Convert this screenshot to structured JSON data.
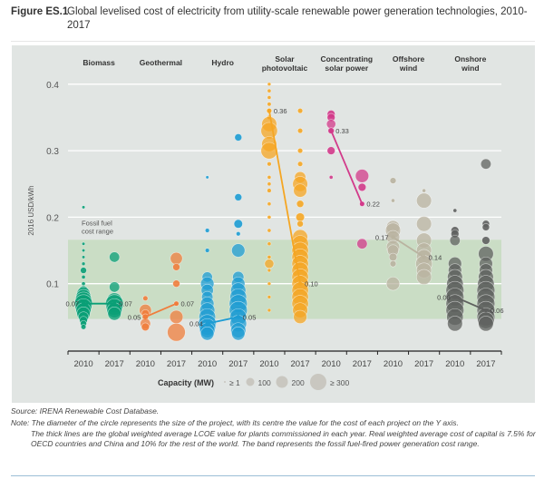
{
  "figure": {
    "label": "Figure ES.1",
    "title": "Global levelised cost of electricity from utility-scale renewable power generation technologies, 2010-2017"
  },
  "source": "Source: IRENA Renewable Cost Database.",
  "note": {
    "first": "Note: The diameter of the circle represents the size of the project, with its centre the value for the cost of each project on the Y axis.",
    "rest": "The thick lines are the global weighted average LCOE value for plants commissioned in each year. Real weighted average cost of capital is 7.5% for OECD countries and China and 10% for the rest of the world. The band represents the fossil fuel-fired power generation cost range."
  },
  "chart_data": {
    "type": "scatter",
    "title": "Global levelised cost of electricity from utility-scale renewable power generation technologies, 2010-2017",
    "ylabel": "2016 USD/kWh",
    "xlabel": "",
    "ylim": [
      0,
      0.42
    ],
    "yticks": [
      0.1,
      0.2,
      0.3,
      0.4
    ],
    "ytick_labels": [
      "0.1",
      "0.2",
      "0.3",
      "0.4"
    ],
    "grid": true,
    "band": {
      "label": "Fossil fuel cost range",
      "low": 0.047,
      "high": 0.166,
      "color": "#c6dcbf"
    },
    "x_years": [
      "2010",
      "2017"
    ],
    "legend": {
      "title": "Capacity (MW)",
      "placement": "bottom",
      "entries": [
        {
          "label": "≥ 1",
          "mw": 1
        },
        {
          "label": "100",
          "mw": 100
        },
        {
          "label": "200",
          "mw": 200
        },
        {
          "label": "≥ 300",
          "mw": 300
        }
      ]
    },
    "series": [
      {
        "name": "Biomass",
        "header": [
          "Biomass"
        ],
        "color": "#0a9f76",
        "avg_2010": 0.07,
        "avg_2017": 0.07,
        "label_2010": "0.07",
        "label_2017": "0.07",
        "points_2010": [
          [
            0.215,
            1
          ],
          [
            0.16,
            1
          ],
          [
            0.15,
            1
          ],
          [
            0.14,
            1
          ],
          [
            0.13,
            2
          ],
          [
            0.12,
            20
          ],
          [
            0.11,
            3
          ],
          [
            0.1,
            3
          ],
          [
            0.09,
            60
          ],
          [
            0.085,
            150
          ],
          [
            0.08,
            200
          ],
          [
            0.075,
            250
          ],
          [
            0.07,
            300
          ],
          [
            0.065,
            250
          ],
          [
            0.06,
            200
          ],
          [
            0.055,
            150
          ],
          [
            0.05,
            80
          ],
          [
            0.045,
            40
          ],
          [
            0.04,
            20
          ],
          [
            0.035,
            10
          ]
        ],
        "points_2017": [
          [
            0.14,
            80
          ],
          [
            0.095,
            80
          ],
          [
            0.075,
            200
          ],
          [
            0.07,
            300
          ],
          [
            0.065,
            250
          ],
          [
            0.06,
            200
          ],
          [
            0.055,
            150
          ]
        ]
      },
      {
        "name": "Geothermal",
        "header": [
          "Geothermal"
        ],
        "color": "#ef7d3c",
        "avg_2010": 0.05,
        "avg_2017": 0.07,
        "label_2010": "0.05",
        "label_2017": "0.07",
        "points_2010": [
          [
            0.078,
            10
          ],
          [
            0.06,
            120
          ],
          [
            0.055,
            40
          ],
          [
            0.05,
            20
          ],
          [
            0.04,
            80
          ],
          [
            0.035,
            40
          ]
        ],
        "points_2017": [
          [
            0.138,
            120
          ],
          [
            0.125,
            30
          ],
          [
            0.1,
            30
          ],
          [
            0.07,
            10
          ],
          [
            0.05,
            150
          ],
          [
            0.027,
            300
          ]
        ]
      },
      {
        "name": "Hydro",
        "header": [
          "Hydro"
        ],
        "color": "#1d9cd3",
        "avg_2010": 0.04,
        "avg_2017": 0.05,
        "label_2010": "0.04",
        "label_2017": "0.05",
        "points_2010": [
          [
            0.26,
            1
          ],
          [
            0.18,
            5
          ],
          [
            0.15,
            5
          ],
          [
            0.11,
            80
          ],
          [
            0.1,
            150
          ],
          [
            0.09,
            120
          ],
          [
            0.08,
            100
          ],
          [
            0.07,
            150
          ],
          [
            0.06,
            200
          ],
          [
            0.05,
            250
          ],
          [
            0.04,
            300
          ],
          [
            0.035,
            250
          ],
          [
            0.03,
            200
          ],
          [
            0.025,
            150
          ]
        ],
        "points_2017": [
          [
            0.32,
            30
          ],
          [
            0.23,
            30
          ],
          [
            0.19,
            50
          ],
          [
            0.175,
            5
          ],
          [
            0.15,
            150
          ],
          [
            0.11,
            100
          ],
          [
            0.1,
            150
          ],
          [
            0.09,
            200
          ],
          [
            0.08,
            250
          ],
          [
            0.07,
            300
          ],
          [
            0.06,
            300
          ],
          [
            0.05,
            250
          ],
          [
            0.04,
            250
          ],
          [
            0.03,
            200
          ],
          [
            0.025,
            150
          ]
        ]
      },
      {
        "name": "Solar photovoltaic",
        "header": [
          "Solar",
          "photovoltaic"
        ],
        "color": "#f5a623",
        "avg_2010": 0.36,
        "avg_2017": 0.1,
        "label_2010": "0.36",
        "label_2017": "0.10",
        "points_2010": [
          [
            0.4,
            2
          ],
          [
            0.39,
            3
          ],
          [
            0.38,
            3
          ],
          [
            0.37,
            4
          ],
          [
            0.36,
            10
          ],
          [
            0.35,
            5
          ],
          [
            0.34,
            200
          ],
          [
            0.33,
            250
          ],
          [
            0.31,
            200
          ],
          [
            0.3,
            250
          ],
          [
            0.28,
            5
          ],
          [
            0.26,
            3
          ],
          [
            0.25,
            3
          ],
          [
            0.24,
            5
          ],
          [
            0.22,
            3
          ],
          [
            0.2,
            3
          ],
          [
            0.18,
            3
          ],
          [
            0.16,
            3
          ],
          [
            0.14,
            3
          ],
          [
            0.13,
            60
          ],
          [
            0.12,
            2
          ],
          [
            0.1,
            2
          ],
          [
            0.08,
            2
          ],
          [
            0.06,
            2
          ]
        ],
        "points_2017": [
          [
            0.36,
            10
          ],
          [
            0.33,
            10
          ],
          [
            0.3,
            10
          ],
          [
            0.28,
            10
          ],
          [
            0.26,
            100
          ],
          [
            0.25,
            200
          ],
          [
            0.24,
            150
          ],
          [
            0.22,
            30
          ],
          [
            0.2,
            50
          ],
          [
            0.19,
            20
          ],
          [
            0.17,
            200
          ],
          [
            0.16,
            250
          ],
          [
            0.15,
            250
          ],
          [
            0.14,
            250
          ],
          [
            0.13,
            250
          ],
          [
            0.12,
            250
          ],
          [
            0.11,
            250
          ],
          [
            0.1,
            250
          ],
          [
            0.09,
            250
          ],
          [
            0.08,
            250
          ],
          [
            0.07,
            250
          ],
          [
            0.06,
            200
          ],
          [
            0.05,
            150
          ]
        ]
      },
      {
        "name": "Concentrating solar power",
        "header": [
          "Concentrating",
          "solar power"
        ],
        "color": "#d23a8a",
        "avg_2010": 0.33,
        "avg_2017": 0.22,
        "label_2010": "0.33",
        "label_2017": "0.22",
        "points_2010": [
          [
            0.355,
            40
          ],
          [
            0.35,
            40
          ],
          [
            0.34,
            60
          ],
          [
            0.33,
            20
          ],
          [
            0.3,
            40
          ],
          [
            0.26,
            3
          ]
        ],
        "points_2017": [
          [
            0.262,
            150
          ],
          [
            0.245,
            40
          ],
          [
            0.22,
            10
          ],
          [
            0.16,
            80
          ]
        ]
      },
      {
        "name": "Offshore wind",
        "header": [
          "Offshore",
          "wind"
        ],
        "color": "#b9b3a0",
        "avg_2010": 0.17,
        "avg_2017": 0.14,
        "label_2010": "0.17",
        "label_2017": "0.14",
        "points_2010": [
          [
            0.255,
            20
          ],
          [
            0.225,
            3
          ],
          [
            0.185,
            150
          ],
          [
            0.18,
            200
          ],
          [
            0.17,
            150
          ],
          [
            0.155,
            150
          ],
          [
            0.15,
            100
          ],
          [
            0.14,
            40
          ],
          [
            0.13,
            20
          ],
          [
            0.1,
            150
          ]
        ],
        "points_2017": [
          [
            0.24,
            3
          ],
          [
            0.225,
            200
          ],
          [
            0.19,
            200
          ],
          [
            0.165,
            200
          ],
          [
            0.15,
            200
          ],
          [
            0.14,
            200
          ],
          [
            0.13,
            250
          ],
          [
            0.12,
            200
          ],
          [
            0.11,
            200
          ]
        ]
      },
      {
        "name": "Onshore wind",
        "header": [
          "Onshore",
          "wind"
        ],
        "color": "#5f615f",
        "avg_2010": 0.08,
        "avg_2017": 0.06,
        "label_2010": "0.08",
        "label_2017": "0.06",
        "points_2010": [
          [
            0.21,
            3
          ],
          [
            0.18,
            40
          ],
          [
            0.175,
            40
          ],
          [
            0.165,
            80
          ],
          [
            0.13,
            150
          ],
          [
            0.12,
            150
          ],
          [
            0.11,
            200
          ],
          [
            0.1,
            250
          ],
          [
            0.09,
            300
          ],
          [
            0.08,
            300
          ],
          [
            0.07,
            300
          ],
          [
            0.06,
            300
          ],
          [
            0.05,
            250
          ],
          [
            0.04,
            200
          ]
        ],
        "points_2017": [
          [
            0.28,
            80
          ],
          [
            0.19,
            30
          ],
          [
            0.185,
            30
          ],
          [
            0.165,
            40
          ],
          [
            0.145,
            200
          ],
          [
            0.13,
            150
          ],
          [
            0.12,
            150
          ],
          [
            0.11,
            200
          ],
          [
            0.1,
            250
          ],
          [
            0.09,
            300
          ],
          [
            0.08,
            300
          ],
          [
            0.07,
            300
          ],
          [
            0.06,
            300
          ],
          [
            0.05,
            300
          ],
          [
            0.045,
            250
          ],
          [
            0.04,
            200
          ]
        ]
      }
    ]
  }
}
